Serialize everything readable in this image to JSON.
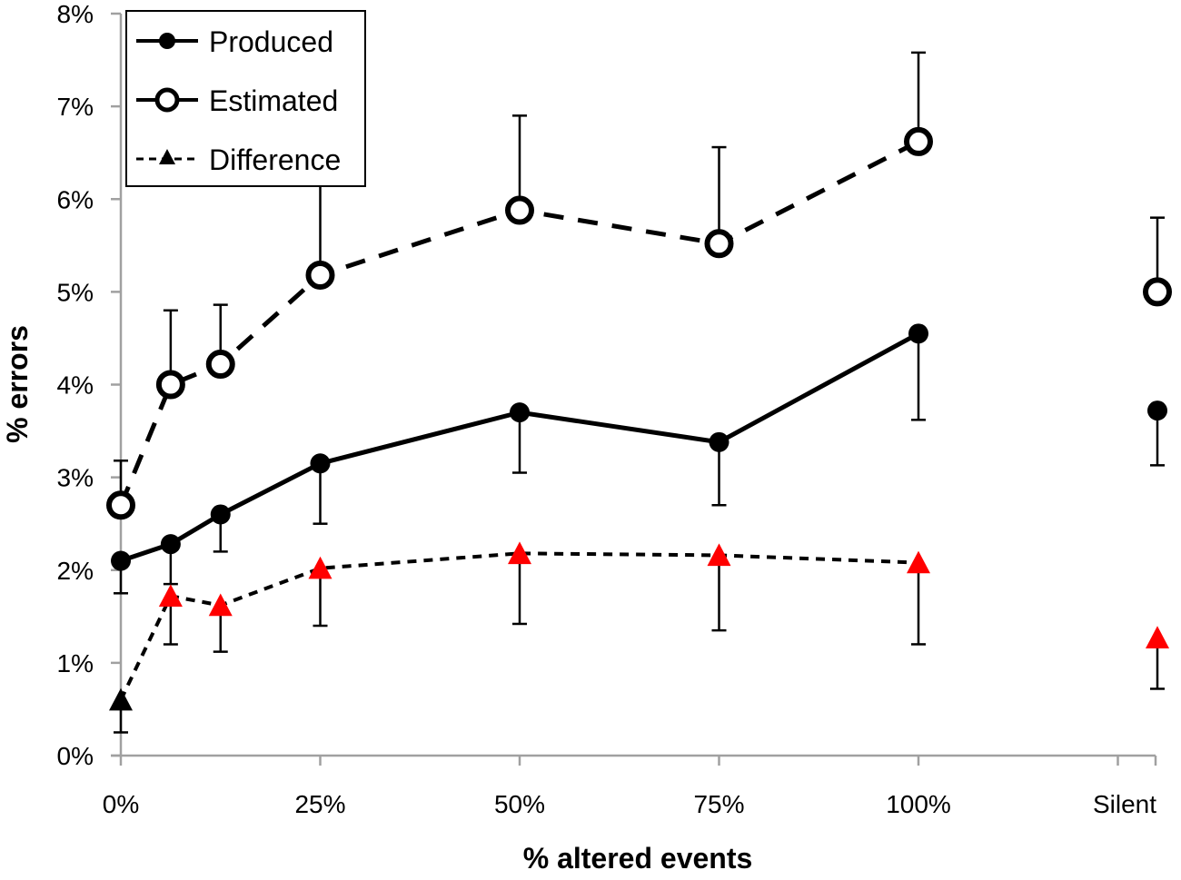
{
  "chart_data": {
    "type": "line",
    "title": "",
    "xlabel": "% altered events",
    "ylabel": "% errors",
    "ylim": [
      0,
      8
    ],
    "y_ticks": [
      0,
      1,
      2,
      3,
      4,
      5,
      6,
      7,
      8
    ],
    "y_tick_labels": [
      "0%",
      "1%",
      "2%",
      "3%",
      "4%",
      "5%",
      "6%",
      "7%",
      "8%"
    ],
    "x_tick_positions": [
      0,
      25,
      50,
      75,
      100,
      125
    ],
    "x_tick_labels": [
      "0%",
      "25%",
      "50%",
      "75%",
      "100%",
      "Silent"
    ],
    "x_range": [
      0,
      130
    ],
    "x": [
      0,
      6.25,
      12.5,
      25,
      50,
      75,
      100
    ],
    "silent_x": 130,
    "legend_position": "top-left",
    "series": [
      {
        "name": "Produced",
        "style": "solid",
        "marker": "filled-circle",
        "values": [
          2.1,
          2.28,
          2.6,
          3.15,
          3.7,
          3.38,
          4.55
        ],
        "error_upper": [
          null,
          null,
          null,
          null,
          null,
          null,
          null
        ],
        "error_lower": [
          1.75,
          1.85,
          2.2,
          2.5,
          3.05,
          2.7,
          3.62
        ],
        "silent_value": 3.72,
        "silent_error_lower": 3.13
      },
      {
        "name": "Estimated",
        "style": "dashed",
        "marker": "open-circle",
        "values": [
          2.7,
          4.0,
          4.22,
          5.18,
          5.88,
          5.52,
          6.62
        ],
        "error_upper": [
          3.18,
          4.8,
          4.86,
          6.24,
          6.9,
          6.56,
          7.58
        ],
        "error_lower": [
          null,
          null,
          null,
          null,
          null,
          null,
          null
        ],
        "silent_value": 5.0,
        "silent_error_upper": 5.8
      },
      {
        "name": "Difference",
        "style": "dashed-short",
        "marker": "triangle",
        "values": [
          0.6,
          1.72,
          1.62,
          2.02,
          2.18,
          2.16,
          2.08
        ],
        "error_lower": [
          0.25,
          1.2,
          1.12,
          1.4,
          1.42,
          1.35,
          1.2
        ],
        "marker_colors": [
          "#000000",
          "#ff0000",
          "#ff0000",
          "#ff0000",
          "#ff0000",
          "#ff0000",
          "#ff0000"
        ],
        "silent_value": 1.27,
        "silent_error_lower": 0.72,
        "silent_marker_color": "#ff0000"
      }
    ]
  }
}
